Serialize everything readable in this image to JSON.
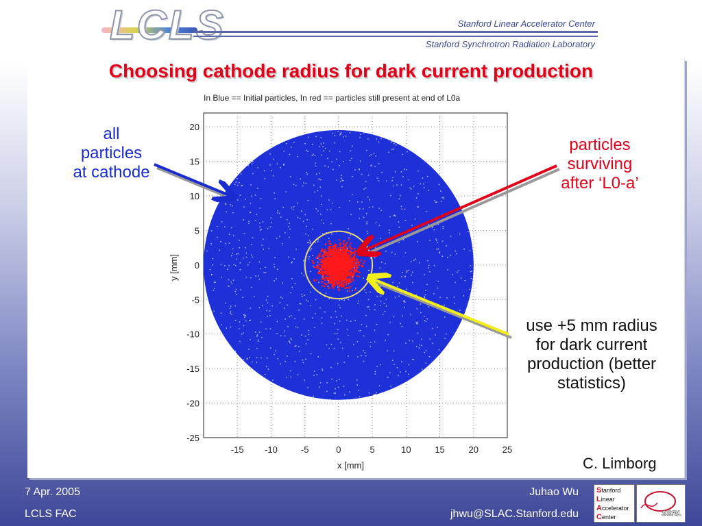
{
  "header": {
    "logo_text": "LCLS",
    "org_line_1": "Stanford Linear Accelerator Center",
    "org_line_2": "Stanford Synchrotron Radiation Laboratory"
  },
  "slide": {
    "title": "Choosing cathode radius for dark current production",
    "annotations": {
      "all_particles": [
        "all",
        "particles",
        "at cathode"
      ],
      "surviving": [
        "particles",
        "surviving",
        "after ‘L0-a’"
      ],
      "use_radius": [
        "use +5 mm radius",
        "for dark current",
        "production (better",
        "statistics)"
      ]
    },
    "credit": "C. Limborg"
  },
  "chart_data": {
    "type": "scatter",
    "title": "In Blue == Initial particles, In red == particles still present at end of L0a",
    "xlabel": "x [mm]",
    "ylabel": "y [mm]",
    "xlim": [
      -20,
      25
    ],
    "ylim": [
      -25,
      22
    ],
    "xticks": [
      -15,
      -10,
      -5,
      0,
      5,
      10,
      15,
      20,
      25
    ],
    "yticks": [
      20,
      15,
      10,
      5,
      0,
      -5,
      -10,
      -15,
      -20,
      -25
    ],
    "grid": true,
    "series": [
      {
        "color": "#1e30d8",
        "distribution": "uniform disk",
        "center": [
          0,
          0
        ],
        "radius": 20
      },
      {
        "color": "#ff1a1a",
        "distribution": "gaussian cluster",
        "center": [
          0,
          0
        ],
        "sigma": 1.2
      }
    ],
    "circle": {
      "center": [
        0,
        0
      ],
      "radius": 5,
      "color": "#e8d870"
    },
    "arrows": [
      {
        "from": "all particles at cathode",
        "to": [
          -16,
          10
        ],
        "color": "#1a2bd0"
      },
      {
        "from": "particles surviving after L0-a",
        "to": [
          3.5,
          2
        ],
        "color": "#e0001a"
      },
      {
        "from": "use +5 mm radius",
        "to": [
          5,
          -2
        ],
        "color": "#f2ee1a"
      }
    ]
  },
  "footer": {
    "date": "7 Apr. 2005",
    "group": "LCLS FAC",
    "author": "Juhao Wu",
    "email": "jhwu@SLAC.Stanford.edu",
    "slac_logo": [
      "S",
      "tanford",
      "L",
      "inear",
      "A",
      "ccelerator",
      "C",
      "enter"
    ],
    "ssrl_logo": "SSRL"
  }
}
